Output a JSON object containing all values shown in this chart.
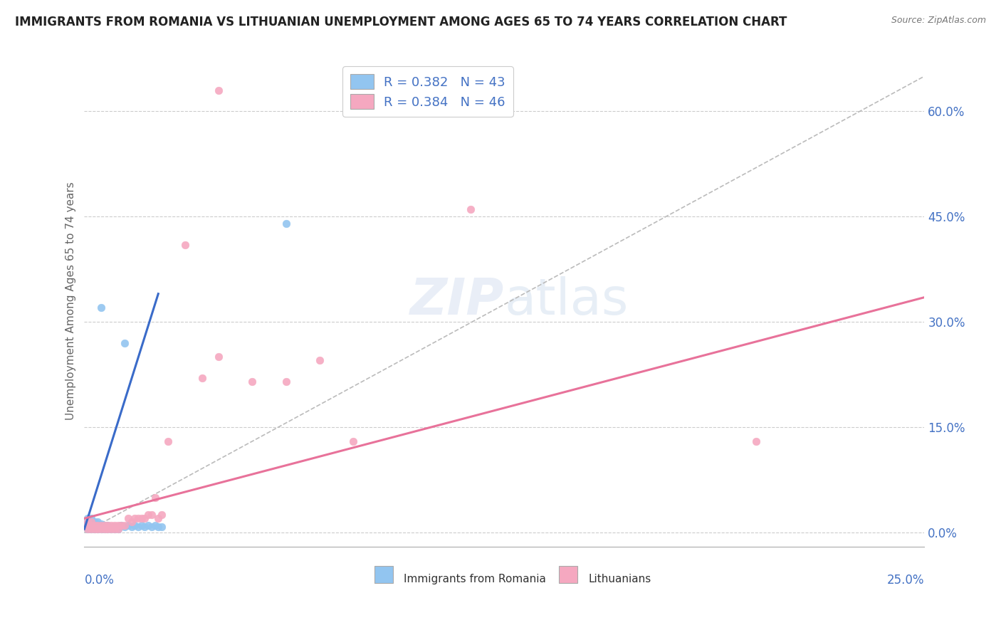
{
  "title": "IMMIGRANTS FROM ROMANIA VS LITHUANIAN UNEMPLOYMENT AMONG AGES 65 TO 74 YEARS CORRELATION CHART",
  "source": "Source: ZipAtlas.com",
  "ylabel": "Unemployment Among Ages 65 to 74 years",
  "yticks": [
    "0.0%",
    "15.0%",
    "30.0%",
    "45.0%",
    "60.0%"
  ],
  "ytick_vals": [
    0.0,
    0.15,
    0.3,
    0.45,
    0.6
  ],
  "xlim": [
    0.0,
    0.25
  ],
  "ylim": [
    -0.02,
    0.68
  ],
  "blue_color": "#92C5F0",
  "pink_color": "#F5A8C0",
  "blue_line_color": "#3A6BC9",
  "pink_line_color": "#E8729A",
  "dashed_line_color": "#BBBBBB",
  "legend_text_color": "#4472C4",
  "romania_x": [
    0.001,
    0.001,
    0.001,
    0.001,
    0.002,
    0.002,
    0.002,
    0.002,
    0.003,
    0.003,
    0.003,
    0.004,
    0.004,
    0.004,
    0.005,
    0.005,
    0.005,
    0.006,
    0.006,
    0.007,
    0.007,
    0.008,
    0.008,
    0.009,
    0.009,
    0.01,
    0.01,
    0.011,
    0.012,
    0.013,
    0.014,
    0.015,
    0.016,
    0.017,
    0.018,
    0.019,
    0.02,
    0.021,
    0.022,
    0.023,
    0.06,
    0.012,
    0.005
  ],
  "romania_y": [
    0.005,
    0.01,
    0.015,
    0.02,
    0.005,
    0.01,
    0.015,
    0.02,
    0.005,
    0.01,
    0.015,
    0.005,
    0.01,
    0.015,
    0.005,
    0.008,
    0.012,
    0.005,
    0.01,
    0.005,
    0.01,
    0.005,
    0.008,
    0.005,
    0.008,
    0.005,
    0.008,
    0.01,
    0.008,
    0.01,
    0.008,
    0.01,
    0.008,
    0.01,
    0.008,
    0.01,
    0.008,
    0.01,
    0.008,
    0.008,
    0.44,
    0.27,
    0.32
  ],
  "romanian_trendline_x": [
    0.0,
    0.022
  ],
  "romanian_trendline_y": [
    0.005,
    0.34
  ],
  "lithuanian_x": [
    0.001,
    0.001,
    0.001,
    0.002,
    0.002,
    0.002,
    0.003,
    0.003,
    0.004,
    0.004,
    0.005,
    0.005,
    0.006,
    0.006,
    0.007,
    0.007,
    0.008,
    0.008,
    0.009,
    0.009,
    0.01,
    0.01,
    0.011,
    0.012,
    0.013,
    0.014,
    0.015,
    0.016,
    0.017,
    0.018,
    0.019,
    0.02,
    0.021,
    0.022,
    0.023,
    0.035,
    0.04,
    0.05,
    0.06,
    0.07,
    0.08,
    0.115,
    0.2,
    0.04,
    0.03,
    0.025
  ],
  "lithuanian_y": [
    0.005,
    0.01,
    0.015,
    0.005,
    0.01,
    0.015,
    0.005,
    0.01,
    0.005,
    0.01,
    0.005,
    0.01,
    0.005,
    0.01,
    0.005,
    0.01,
    0.005,
    0.01,
    0.005,
    0.01,
    0.005,
    0.01,
    0.01,
    0.01,
    0.02,
    0.015,
    0.02,
    0.02,
    0.02,
    0.02,
    0.025,
    0.025,
    0.05,
    0.02,
    0.025,
    0.22,
    0.25,
    0.215,
    0.215,
    0.245,
    0.13,
    0.46,
    0.13,
    0.63,
    0.41,
    0.13
  ],
  "lithuanian_trendline_x": [
    0.0,
    0.25
  ],
  "lithuanian_trendline_y": [
    0.02,
    0.335
  ]
}
